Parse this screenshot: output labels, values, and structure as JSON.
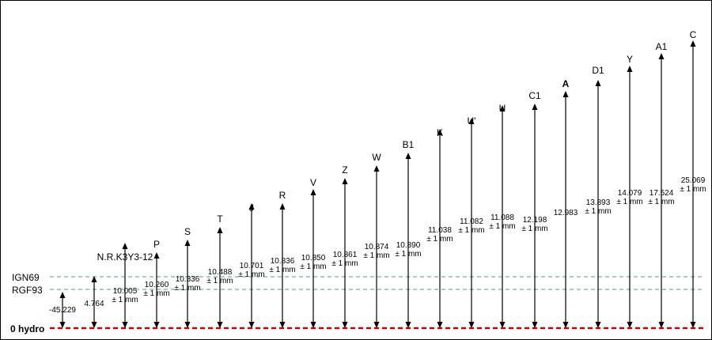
{
  "reference_lines": [
    {
      "label": "IGN69",
      "color": "#5a9a9a",
      "style": "dashed"
    },
    {
      "label": "RGF93",
      "color": "#5a9a9a",
      "style": "dashed"
    },
    {
      "label": "0 hydro",
      "color": "#cc0000",
      "style": "dashed-bold"
    }
  ],
  "accuracy_text": "± 1 mm",
  "chart_data": {
    "type": "elevation-arrows",
    "baseline": "0 hydro",
    "points": [
      {
        "name": "",
        "value": "-45.229",
        "accuracy": false,
        "arrow": "down"
      },
      {
        "name": "",
        "value": "4.764",
        "accuracy": false,
        "arrow": "up"
      },
      {
        "name": "N.R.K3Y3-12",
        "value": "10.005",
        "accuracy": true,
        "arrow": "up"
      },
      {
        "name": "P",
        "value": "10.260",
        "accuracy": true,
        "arrow": "up"
      },
      {
        "name": "S",
        "value": "10.336",
        "accuracy": true,
        "arrow": "up"
      },
      {
        "name": "T",
        "value": "10.488",
        "accuracy": true,
        "arrow": "up"
      },
      {
        "name": "J",
        "value": "10.701",
        "accuracy": true,
        "arrow": "up"
      },
      {
        "name": "R",
        "value": "10.836",
        "accuracy": true,
        "arrow": "up"
      },
      {
        "name": "V",
        "value": "10.850",
        "accuracy": true,
        "arrow": "up"
      },
      {
        "name": "Z",
        "value": "10.861",
        "accuracy": true,
        "arrow": "up"
      },
      {
        "name": "W",
        "value": "10.874",
        "accuracy": true,
        "arrow": "up"
      },
      {
        "name": "B1",
        "value": "10.890",
        "accuracy": true,
        "arrow": "up"
      },
      {
        "name": "K",
        "value": "11.038",
        "accuracy": true,
        "arrow": "up"
      },
      {
        "name": "U'",
        "value": "11.082",
        "accuracy": true,
        "arrow": "up"
      },
      {
        "name": "U",
        "value": "11.088",
        "accuracy": true,
        "arrow": "up"
      },
      {
        "name": "C1",
        "value": "12.198",
        "accuracy": true,
        "arrow": "up"
      },
      {
        "name": "A",
        "value": "12.983",
        "accuracy": false,
        "arrow": "up",
        "bold": true
      },
      {
        "name": "D1",
        "value": "13.893",
        "accuracy": true,
        "arrow": "up"
      },
      {
        "name": "Y",
        "value": "14.079",
        "accuracy": true,
        "arrow": "up"
      },
      {
        "name": "A1",
        "value": "17.524",
        "accuracy": true,
        "arrow": "up"
      },
      {
        "name": "C",
        "value": "25.069",
        "accuracy": true,
        "arrow": "up"
      }
    ]
  }
}
